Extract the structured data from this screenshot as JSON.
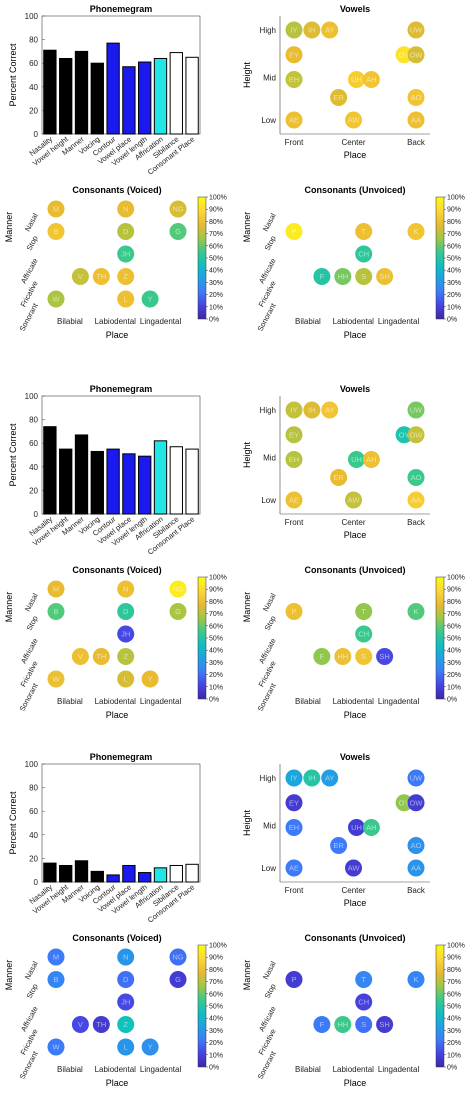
{
  "colormap": [
    "#3e26a8",
    "#4743e3",
    "#3d7bfa",
    "#1ea2e3",
    "#10bfbf",
    "#3cc98a",
    "#a1c744",
    "#e9ba30",
    "#fdd835",
    "#f9fb0e"
  ],
  "labels": {
    "phonemegram_title": "Phonemegram",
    "vowels_title": "Vowels",
    "voiced_title": "Consonants (Voiced)",
    "unvoiced_title": "Consonants (Unvoiced)",
    "percent_correct": "Percent Correct",
    "height": "Height",
    "manner": "Manner",
    "place": "Place"
  },
  "chart_data": {
    "type": "bar",
    "phonemegram_categories": [
      "Nasality",
      "Vowel height",
      "Manner",
      "Voicing",
      "Contour",
      "Vowel place",
      "Vowel length",
      "Affrication",
      "Sibilance",
      "Consonant Place"
    ],
    "phonemegram_fills": [
      "#000000",
      "#000000",
      "#000000",
      "#000000",
      "#1a1aee",
      "#1a1aee",
      "#1a1aee",
      "#22e6e6",
      "#ffffff",
      "#ffffff"
    ],
    "phonemegram_yticks": [
      0,
      20,
      40,
      60,
      80,
      100
    ],
    "phonemegram_ylim": [
      0,
      100
    ],
    "vowel_rows": [
      "High",
      "Mid",
      "Low"
    ],
    "vowel_cols": [
      "Front",
      "Center",
      "Back"
    ],
    "consonant_rows": [
      "Nasal",
      "Stop",
      "Affricate",
      "Fricative",
      "Sonorant"
    ],
    "consonant_cols": [
      "Bilabial",
      "Labiodental",
      "Lingadental"
    ],
    "colorbar_ticks": [
      "0",
      "10",
      "20",
      "30",
      "40",
      "50",
      "60",
      "70",
      "80",
      "90",
      "100"
    ],
    "colorbar_ticks_pct": [
      "0%",
      "10%",
      "20%",
      "30%",
      "40%",
      "50%",
      "60%",
      "70%",
      "80%",
      "90%",
      "100%"
    ],
    "sets": [
      {
        "phonemegram": [
          71,
          64,
          70,
          60,
          77,
          57,
          61,
          64,
          69,
          65
        ],
        "vowels": [
          {
            "label": "IY",
            "x": 1.0,
            "y": 3.0,
            "v": 70
          },
          {
            "label": "IH",
            "x": 1.6,
            "y": 3.0,
            "v": 76
          },
          {
            "label": "AY",
            "x": 2.2,
            "y": 3.0,
            "v": 80
          },
          {
            "label": "EY",
            "x": 1.0,
            "y": 2.45,
            "v": 78
          },
          {
            "label": "EH",
            "x": 1.0,
            "y": 1.9,
            "v": 72
          },
          {
            "label": "UH",
            "x": 3.1,
            "y": 1.9,
            "v": 85
          },
          {
            "label": "AH",
            "x": 3.6,
            "y": 1.9,
            "v": 82
          },
          {
            "label": "OY",
            "x": 4.7,
            "y": 2.45,
            "v": 92
          },
          {
            "label": "UW",
            "x": 5.1,
            "y": 3.0,
            "v": 76
          },
          {
            "label": "OW",
            "x": 5.1,
            "y": 2.45,
            "v": 75
          },
          {
            "label": "ER",
            "x": 2.5,
            "y": 1.5,
            "v": 76
          },
          {
            "label": "AO",
            "x": 5.1,
            "y": 1.5,
            "v": 82
          },
          {
            "label": "AE",
            "x": 1.0,
            "y": 1.0,
            "v": 80
          },
          {
            "label": "AW",
            "x": 3.0,
            "y": 1.0,
            "v": 82
          },
          {
            "label": "AA",
            "x": 5.1,
            "y": 1.0,
            "v": 80
          }
        ],
        "voiced": [
          {
            "label": "M",
            "x": 1.0,
            "y": 5,
            "v": 78
          },
          {
            "label": "N",
            "x": 3.0,
            "y": 5,
            "v": 78
          },
          {
            "label": "NG",
            "x": 4.5,
            "y": 5,
            "v": 75
          },
          {
            "label": "B",
            "x": 1.0,
            "y": 4,
            "v": 82
          },
          {
            "label": "D",
            "x": 3.0,
            "y": 4,
            "v": 70
          },
          {
            "label": "G",
            "x": 4.5,
            "y": 4,
            "v": 58
          },
          {
            "label": "JH",
            "x": 3.0,
            "y": 3,
            "v": 55
          },
          {
            "label": "V",
            "x": 1.7,
            "y": 2,
            "v": 72
          },
          {
            "label": "TH",
            "x": 2.3,
            "y": 2,
            "v": 80
          },
          {
            "label": "Z",
            "x": 3.0,
            "y": 2,
            "v": 80
          },
          {
            "label": "W",
            "x": 1.0,
            "y": 1,
            "v": 68
          },
          {
            "label": "L",
            "x": 3.0,
            "y": 1,
            "v": 80
          },
          {
            "label": "Y",
            "x": 3.7,
            "y": 1,
            "v": 55
          }
        ],
        "unvoiced": [
          {
            "label": "P",
            "x": 1.0,
            "y": 4,
            "v": 95
          },
          {
            "label": "T",
            "x": 3.0,
            "y": 4,
            "v": 80
          },
          {
            "label": "K",
            "x": 4.5,
            "y": 4,
            "v": 82
          },
          {
            "label": "CH",
            "x": 3.0,
            "y": 3,
            "v": 52
          },
          {
            "label": "F",
            "x": 1.8,
            "y": 2,
            "v": 50
          },
          {
            "label": "HH",
            "x": 2.4,
            "y": 2,
            "v": 62
          },
          {
            "label": "S",
            "x": 3.0,
            "y": 2,
            "v": 70
          },
          {
            "label": "SH",
            "x": 3.6,
            "y": 2,
            "v": 80
          }
        ]
      },
      {
        "phonemegram": [
          74,
          55,
          67,
          53,
          55,
          51,
          49,
          62,
          57,
          55
        ],
        "vowels": [
          {
            "label": "IY",
            "x": 1.0,
            "y": 3.0,
            "v": 72
          },
          {
            "label": "IH",
            "x": 1.6,
            "y": 3.0,
            "v": 76
          },
          {
            "label": "AY",
            "x": 2.2,
            "y": 3.0,
            "v": 82
          },
          {
            "label": "EY",
            "x": 1.0,
            "y": 2.45,
            "v": 70
          },
          {
            "label": "EH",
            "x": 1.0,
            "y": 1.9,
            "v": 70
          },
          {
            "label": "UH",
            "x": 3.1,
            "y": 1.9,
            "v": 55
          },
          {
            "label": "AH",
            "x": 3.6,
            "y": 1.9,
            "v": 80
          },
          {
            "label": "OY",
            "x": 4.7,
            "y": 2.45,
            "v": 48
          },
          {
            "label": "UW",
            "x": 5.1,
            "y": 3.0,
            "v": 62
          },
          {
            "label": "OW",
            "x": 5.1,
            "y": 2.45,
            "v": 72
          },
          {
            "label": "ER",
            "x": 2.5,
            "y": 1.5,
            "v": 78
          },
          {
            "label": "AO",
            "x": 5.1,
            "y": 1.5,
            "v": 55
          },
          {
            "label": "AE",
            "x": 1.0,
            "y": 1.0,
            "v": 80
          },
          {
            "label": "AW",
            "x": 3.0,
            "y": 1.0,
            "v": 72
          },
          {
            "label": "AA",
            "x": 5.1,
            "y": 1.0,
            "v": 85
          }
        ],
        "voiced": [
          {
            "label": "M",
            "x": 1.0,
            "y": 5,
            "v": 78
          },
          {
            "label": "N",
            "x": 3.0,
            "y": 5,
            "v": 80
          },
          {
            "label": "NG",
            "x": 4.5,
            "y": 5,
            "v": 95
          },
          {
            "label": "B",
            "x": 1.0,
            "y": 4,
            "v": 58
          },
          {
            "label": "D",
            "x": 3.0,
            "y": 4,
            "v": 52
          },
          {
            "label": "G",
            "x": 4.5,
            "y": 4,
            "v": 68
          },
          {
            "label": "JH",
            "x": 3.0,
            "y": 3,
            "v": 12
          },
          {
            "label": "V",
            "x": 1.7,
            "y": 2,
            "v": 80
          },
          {
            "label": "TH",
            "x": 2.3,
            "y": 2,
            "v": 78
          },
          {
            "label": "Z",
            "x": 3.0,
            "y": 2,
            "v": 70
          },
          {
            "label": "W",
            "x": 1.0,
            "y": 1,
            "v": 80
          },
          {
            "label": "L",
            "x": 3.0,
            "y": 1,
            "v": 75
          },
          {
            "label": "Y",
            "x": 3.7,
            "y": 1,
            "v": 78
          }
        ],
        "unvoiced": [
          {
            "label": "P",
            "x": 1.0,
            "y": 4,
            "v": 80
          },
          {
            "label": "T",
            "x": 3.0,
            "y": 4,
            "v": 65
          },
          {
            "label": "K",
            "x": 4.5,
            "y": 4,
            "v": 58
          },
          {
            "label": "CH",
            "x": 3.0,
            "y": 3,
            "v": 55
          },
          {
            "label": "F",
            "x": 1.8,
            "y": 2,
            "v": 65
          },
          {
            "label": "HH",
            "x": 2.4,
            "y": 2,
            "v": 80
          },
          {
            "label": "S",
            "x": 3.0,
            "y": 2,
            "v": 82
          },
          {
            "label": "SH",
            "x": 3.6,
            "y": 2,
            "v": 12
          }
        ]
      },
      {
        "phonemegram": [
          16,
          14,
          18,
          9,
          6,
          14,
          8,
          12,
          14,
          15
        ],
        "vowels": [
          {
            "label": "IY",
            "x": 1.0,
            "y": 3.0,
            "v": 35
          },
          {
            "label": "IH",
            "x": 1.6,
            "y": 3.0,
            "v": 50
          },
          {
            "label": "AY",
            "x": 2.2,
            "y": 3.0,
            "v": 32
          },
          {
            "label": "EY",
            "x": 1.0,
            "y": 2.45,
            "v": 8
          },
          {
            "label": "EH",
            "x": 1.0,
            "y": 1.9,
            "v": 22
          },
          {
            "label": "UH",
            "x": 3.1,
            "y": 1.9,
            "v": 8
          },
          {
            "label": "AH",
            "x": 3.6,
            "y": 1.9,
            "v": 55
          },
          {
            "label": "OY",
            "x": 4.7,
            "y": 2.45,
            "v": 65
          },
          {
            "label": "UW",
            "x": 5.1,
            "y": 3.0,
            "v": 22
          },
          {
            "label": "OW",
            "x": 5.1,
            "y": 2.45,
            "v": 8
          },
          {
            "label": "ER",
            "x": 2.5,
            "y": 1.5,
            "v": 22
          },
          {
            "label": "AO",
            "x": 5.1,
            "y": 1.5,
            "v": 28
          },
          {
            "label": "AE",
            "x": 1.0,
            "y": 1.0,
            "v": 22
          },
          {
            "label": "AW",
            "x": 3.0,
            "y": 1.0,
            "v": 8
          },
          {
            "label": "AA",
            "x": 5.1,
            "y": 1.0,
            "v": 30
          }
        ],
        "voiced": [
          {
            "label": "M",
            "x": 1.0,
            "y": 5,
            "v": 22
          },
          {
            "label": "N",
            "x": 3.0,
            "y": 5,
            "v": 30
          },
          {
            "label": "NG",
            "x": 4.5,
            "y": 5,
            "v": 20
          },
          {
            "label": "B",
            "x": 1.0,
            "y": 4,
            "v": 25
          },
          {
            "label": "D",
            "x": 3.0,
            "y": 4,
            "v": 20
          },
          {
            "label": "G",
            "x": 4.5,
            "y": 4,
            "v": 8
          },
          {
            "label": "JH",
            "x": 3.0,
            "y": 3,
            "v": 12
          },
          {
            "label": "V",
            "x": 1.7,
            "y": 2,
            "v": 12
          },
          {
            "label": "TH",
            "x": 2.3,
            "y": 2,
            "v": 8
          },
          {
            "label": "Z",
            "x": 3.0,
            "y": 2,
            "v": 45
          },
          {
            "label": "W",
            "x": 1.0,
            "y": 1,
            "v": 22
          },
          {
            "label": "L",
            "x": 3.0,
            "y": 1,
            "v": 30
          },
          {
            "label": "Y",
            "x": 3.7,
            "y": 1,
            "v": 28
          }
        ],
        "unvoiced": [
          {
            "label": "P",
            "x": 1.0,
            "y": 4,
            "v": 8
          },
          {
            "label": "T",
            "x": 3.0,
            "y": 4,
            "v": 25
          },
          {
            "label": "K",
            "x": 4.5,
            "y": 4,
            "v": 25
          },
          {
            "label": "CH",
            "x": 3.0,
            "y": 3,
            "v": 10
          },
          {
            "label": "F",
            "x": 1.8,
            "y": 2,
            "v": 22
          },
          {
            "label": "HH",
            "x": 2.4,
            "y": 2,
            "v": 55
          },
          {
            "label": "S",
            "x": 3.0,
            "y": 2,
            "v": 20
          },
          {
            "label": "SH",
            "x": 3.6,
            "y": 2,
            "v": 8
          }
        ]
      }
    ]
  }
}
